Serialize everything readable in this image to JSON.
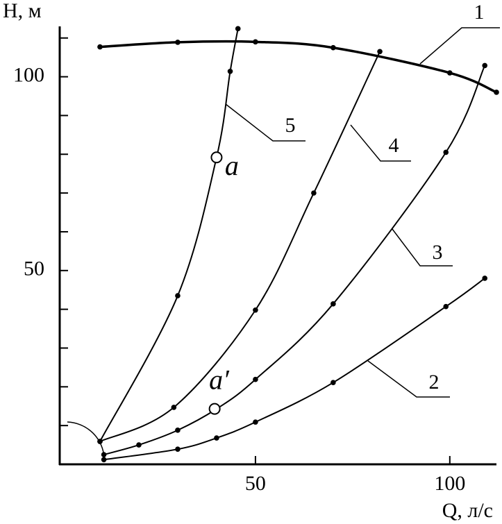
{
  "chart_data": {
    "type": "line",
    "x_label": "Q, л/с",
    "y_label": "H, м",
    "xlim": [
      0,
      112
    ],
    "ylim": [
      0,
      113
    ],
    "xticks": [
      50,
      100
    ],
    "yticks": [
      50,
      100
    ],
    "yminorticks": [
      10,
      20,
      30,
      40,
      60,
      70,
      80,
      90,
      110
    ],
    "series": [
      {
        "name": "1",
        "color": "#000000",
        "x": [
          10,
          30,
          50,
          70,
          100,
          112
        ],
        "values": [
          107.7,
          108.9,
          109,
          107.5,
          101,
          96
        ]
      },
      {
        "name": "2",
        "color": "#000000",
        "x": [
          11,
          30,
          40,
          50,
          70,
          99,
          109
        ],
        "values": [
          1.2,
          3.9,
          6.8,
          10.9,
          21.1,
          40.7,
          48
        ]
      },
      {
        "name": "3",
        "color": "#000000",
        "x": [
          11,
          20,
          30,
          40,
          50,
          70,
          99,
          109
        ],
        "values": [
          2.5,
          5,
          8.8,
          14.3,
          21.9,
          41.4,
          80.5,
          102.9
        ]
      },
      {
        "name": "4",
        "color": "#000000",
        "x": [
          10,
          29,
          50,
          65,
          82
        ],
        "values": [
          5.9,
          14.7,
          39.8,
          70,
          106.5
        ]
      },
      {
        "name": "5",
        "color": "#000000",
        "x": [
          10,
          30,
          40,
          43.5,
          45.5
        ],
        "values": [
          5.9,
          43.5,
          79.2,
          101.4,
          112.4
        ]
      }
    ],
    "points": [
      {
        "label": "a",
        "x": 40,
        "y": 79.2
      },
      {
        "label": "a′",
        "x": 39.5,
        "y": 14.3
      }
    ]
  }
}
